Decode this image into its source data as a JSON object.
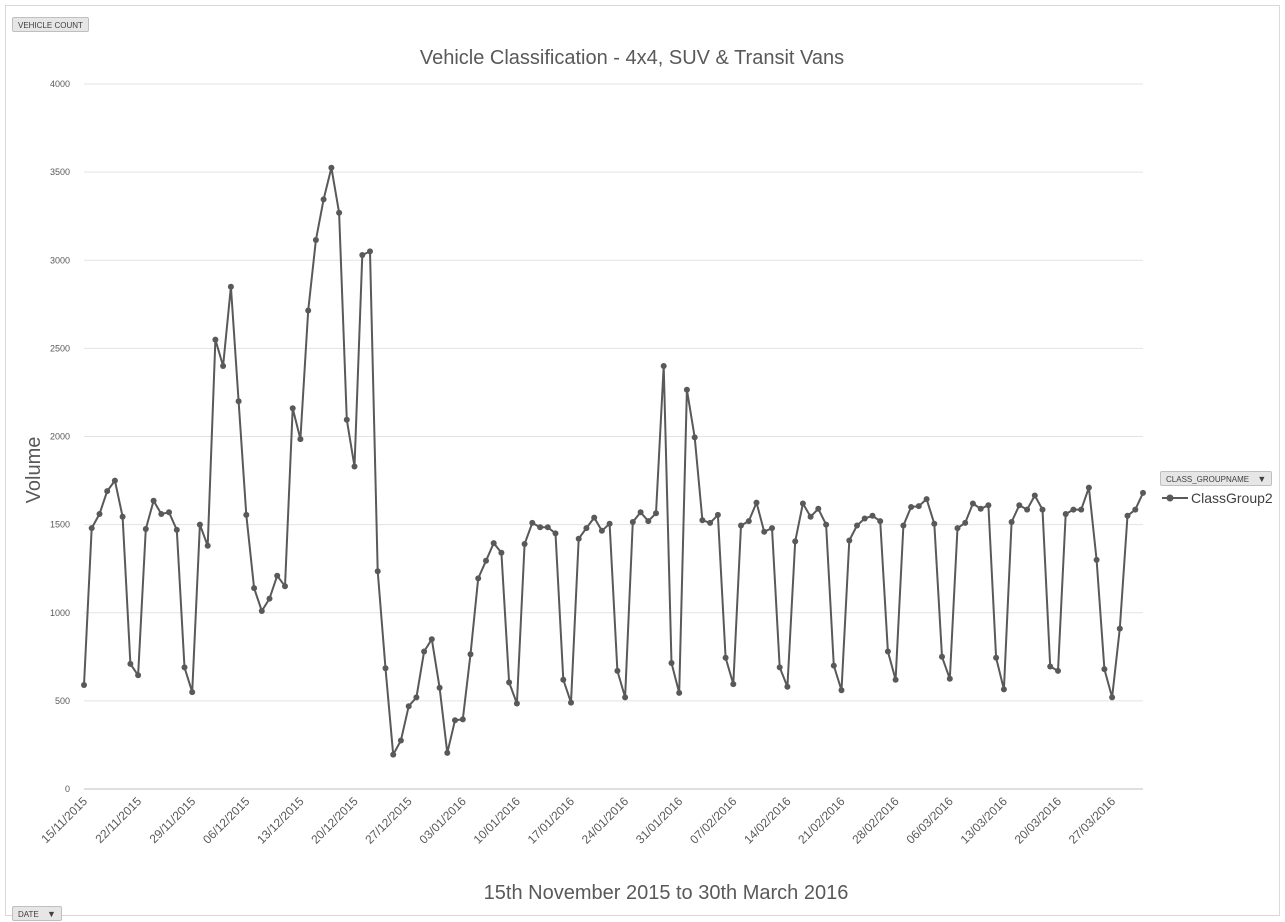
{
  "controls": {
    "vehicle_count_label": "VEHICLE COUNT",
    "date_label": "DATE",
    "legend_field_label": "CLASS_GROUPNAME"
  },
  "icons": {
    "filter": "filter-dropdown-icon",
    "legend_marker": "line-with-circle-marker-icon"
  },
  "colors": {
    "series": "#595959",
    "grid": "#d9d9d9",
    "text": "#595959"
  },
  "chart_data": {
    "type": "line",
    "title": "Vehicle Classification - 4x4, SUV & Transit Vans",
    "xlabel": "15th November 2015 to 30th March 2016",
    "ylabel": "Volume",
    "ylim": [
      0,
      4000
    ],
    "yticks": [
      0,
      500,
      1000,
      1500,
      2000,
      2500,
      3000,
      3500,
      4000
    ],
    "grid": true,
    "legend_placement": "right",
    "xtick_labels": [
      "15/11/2015",
      "22/11/2015",
      "29/11/2015",
      "06/12/2015",
      "13/12/2015",
      "20/12/2015",
      "27/12/2015",
      "03/01/2016",
      "10/01/2016",
      "17/01/2016",
      "24/01/2016",
      "31/01/2016",
      "07/02/2016",
      "14/02/2016",
      "21/02/2016",
      "28/02/2016",
      "06/03/2016",
      "13/03/2016",
      "20/03/2016",
      "27/03/2016"
    ],
    "series": [
      {
        "name": "ClassGroup2",
        "start_date": "15/11/2015",
        "values": [
          590,
          1480,
          1560,
          1690,
          1750,
          1545,
          710,
          645,
          1475,
          1635,
          1560,
          1570,
          1470,
          690,
          550,
          1500,
          1380,
          2550,
          2400,
          2850,
          2200,
          1555,
          1140,
          1010,
          1080,
          1210,
          1150,
          2160,
          1985,
          2715,
          3115,
          3345,
          3525,
          3270,
          2095,
          1830,
          3030,
          3050,
          1235,
          685,
          195,
          275,
          470,
          520,
          780,
          850,
          575,
          205,
          390,
          395,
          765,
          1195,
          1295,
          1395,
          1340,
          605,
          485,
          1390,
          1510,
          1485,
          1485,
          1450,
          620,
          490,
          1420,
          1480,
          1540,
          1465,
          1505,
          670,
          520,
          1515,
          1570,
          1520,
          1565,
          2400,
          715,
          545,
          2265,
          1995,
          1525,
          1510,
          1555,
          745,
          595,
          1495,
          1520,
          1625,
          1460,
          1480,
          690,
          580,
          1405,
          1620,
          1545,
          1590,
          1500,
          700,
          560,
          1410,
          1495,
          1535,
          1550,
          1520,
          780,
          620,
          1495,
          1600,
          1605,
          1645,
          1505,
          750,
          625,
          1480,
          1510,
          1620,
          1590,
          1610,
          745,
          565,
          1515,
          1610,
          1585,
          1665,
          1585,
          695,
          670,
          1560,
          1585,
          1585,
          1710,
          1300,
          680,
          520,
          910,
          1550,
          1585,
          1680
        ]
      }
    ]
  }
}
